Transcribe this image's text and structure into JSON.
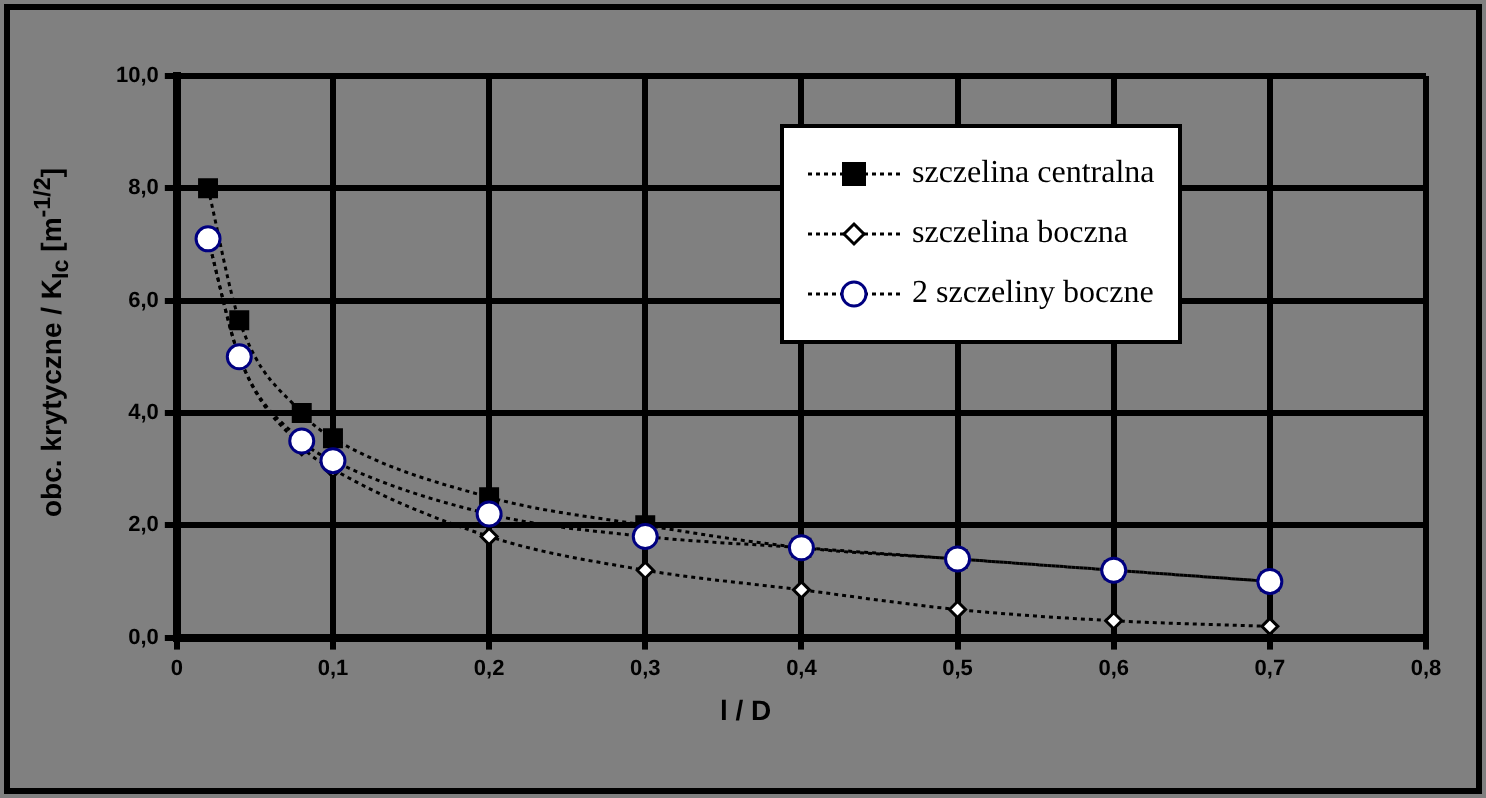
{
  "chart_data": {
    "type": "line",
    "xlabel": "l / D",
    "ylabel": "obc. krytyczne / K$_{Ic}$ [m$^{-1/2}$]",
    "x": [
      0.02,
      0.04,
      0.08,
      0.1,
      0.2,
      0.3,
      0.4,
      0.5,
      0.6,
      0.7
    ],
    "series": [
      {
        "name": "szczelina centralna",
        "color": "#000000",
        "marker": "square",
        "values": [
          8.0,
          5.65,
          4.0,
          3.55,
          2.5,
          2.0,
          1.6,
          1.4,
          1.2,
          1.0
        ]
      },
      {
        "name": "szczelina boczna",
        "color": "#000000",
        "marker": "diamond",
        "values": [
          7.1,
          5.0,
          3.4,
          3.0,
          1.8,
          1.2,
          0.85,
          0.5,
          0.3,
          0.2
        ]
      },
      {
        "name": "2 szczeliny boczne",
        "color": "#000080",
        "marker": "circle",
        "values": [
          7.1,
          5.0,
          3.5,
          3.15,
          2.2,
          1.8,
          1.6,
          1.4,
          1.2,
          1.0
        ]
      }
    ],
    "xlim": [
      0,
      0.8
    ],
    "xticks": [
      {
        "value": 0,
        "label": "0"
      },
      {
        "value": 0.1,
        "label": "0,1"
      },
      {
        "value": 0.2,
        "label": "0,2"
      },
      {
        "value": 0.3,
        "label": "0,3"
      },
      {
        "value": 0.4,
        "label": "0,4"
      },
      {
        "value": 0.5,
        "label": "0,5"
      },
      {
        "value": 0.6,
        "label": "0,6"
      },
      {
        "value": 0.7,
        "label": "0,7"
      },
      {
        "value": 0.8,
        "label": "0,8"
      }
    ],
    "ylim": [
      0,
      10
    ],
    "yticks": [
      {
        "value": 0,
        "label": "0,0"
      },
      {
        "value": 2,
        "label": "2,0"
      },
      {
        "value": 4,
        "label": "4,0"
      },
      {
        "value": 6,
        "label": "6,0"
      },
      {
        "value": 8,
        "label": "8,0"
      },
      {
        "value": 10,
        "label": "10,0"
      }
    ],
    "grid": true,
    "legend": "top right",
    "line_style": "dotted"
  }
}
